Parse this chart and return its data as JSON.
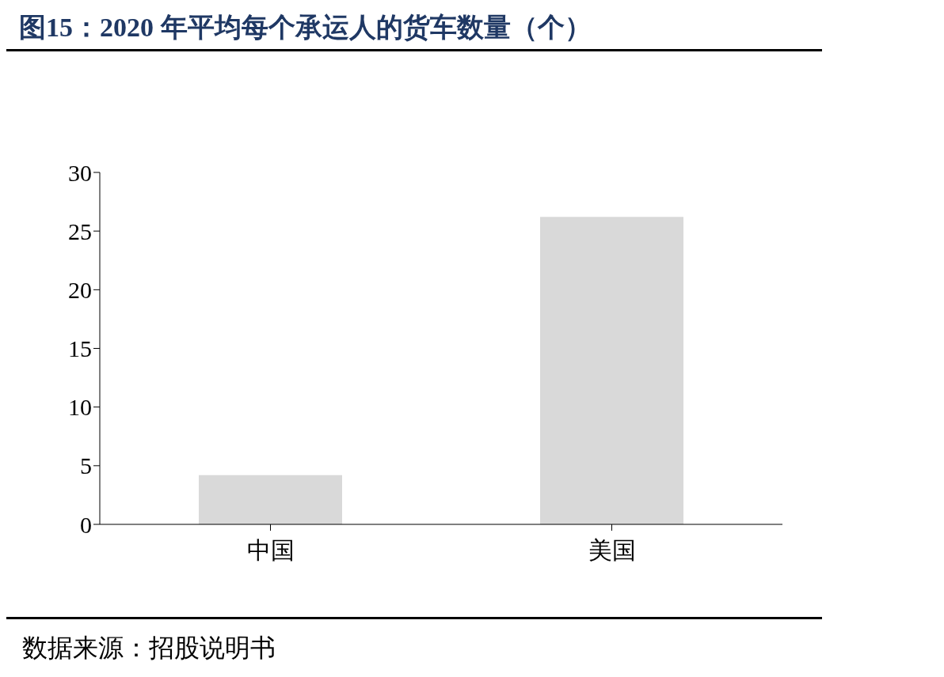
{
  "chart_data": {
    "type": "bar",
    "title": "图15：2020 年平均每个承运人的货车数量（个）",
    "categories": [
      "中国",
      "美国"
    ],
    "values": [
      4.2,
      26.2
    ],
    "color": "#d9d9d9",
    "ylim": [
      0,
      30
    ],
    "yticks": [
      0,
      5,
      10,
      15,
      20,
      25,
      30
    ],
    "grid": false,
    "annotations": [
      "数据来源：招股说明书"
    ]
  }
}
